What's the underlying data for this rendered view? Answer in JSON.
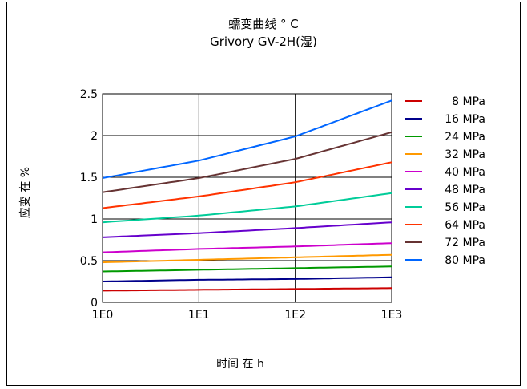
{
  "chart_data": {
    "type": "line",
    "title": "蠕变曲线 ° C",
    "subtitle": "Grivory GV-2H(湿)",
    "xlabel": "时间 在 h",
    "ylabel": "应变 在 %",
    "x_scale": "log",
    "xlim": [
      1,
      1000
    ],
    "ylim": [
      0,
      2.5
    ],
    "x_ticks": [
      "1E0",
      "1E1",
      "1E2",
      "1E3"
    ],
    "y_ticks": [
      "0",
      "0.5",
      "1",
      "1.5",
      "2",
      "2.5"
    ],
    "grid": true,
    "legend_position": "right",
    "series": [
      {
        "name": "8 MPa",
        "color": "#cc0000",
        "x": [
          1,
          10,
          100,
          1000
        ],
        "y": [
          0.14,
          0.15,
          0.16,
          0.17
        ]
      },
      {
        "name": "16 MPa",
        "color": "#00008b",
        "x": [
          1,
          10,
          100,
          1000
        ],
        "y": [
          0.25,
          0.27,
          0.28,
          0.3
        ]
      },
      {
        "name": "24 MPa",
        "color": "#009900",
        "x": [
          1,
          10,
          100,
          1000
        ],
        "y": [
          0.37,
          0.39,
          0.41,
          0.43
        ]
      },
      {
        "name": "32 MPa",
        "color": "#ff9900",
        "x": [
          1,
          10,
          100,
          1000
        ],
        "y": [
          0.48,
          0.51,
          0.54,
          0.57
        ]
      },
      {
        "name": "40 MPa",
        "color": "#cc00cc",
        "x": [
          1,
          10,
          100,
          1000
        ],
        "y": [
          0.6,
          0.64,
          0.67,
          0.71
        ]
      },
      {
        "name": "48 MPa",
        "color": "#6600cc",
        "x": [
          1,
          10,
          100,
          1000
        ],
        "y": [
          0.78,
          0.83,
          0.89,
          0.96
        ]
      },
      {
        "name": "56 MPa",
        "color": "#00cc99",
        "x": [
          1,
          10,
          100,
          1000
        ],
        "y": [
          0.96,
          1.04,
          1.15,
          1.31
        ]
      },
      {
        "name": "64 MPa",
        "color": "#ff3300",
        "x": [
          1,
          10,
          100,
          1000
        ],
        "y": [
          1.13,
          1.27,
          1.44,
          1.68
        ]
      },
      {
        "name": "72 MPa",
        "color": "#663333",
        "x": [
          1,
          10,
          100,
          1000
        ],
        "y": [
          1.32,
          1.49,
          1.72,
          2.04
        ]
      },
      {
        "name": "80 MPa",
        "color": "#0066ff",
        "x": [
          1,
          10,
          100,
          1000
        ],
        "y": [
          1.49,
          1.7,
          1.99,
          2.42
        ]
      }
    ]
  }
}
